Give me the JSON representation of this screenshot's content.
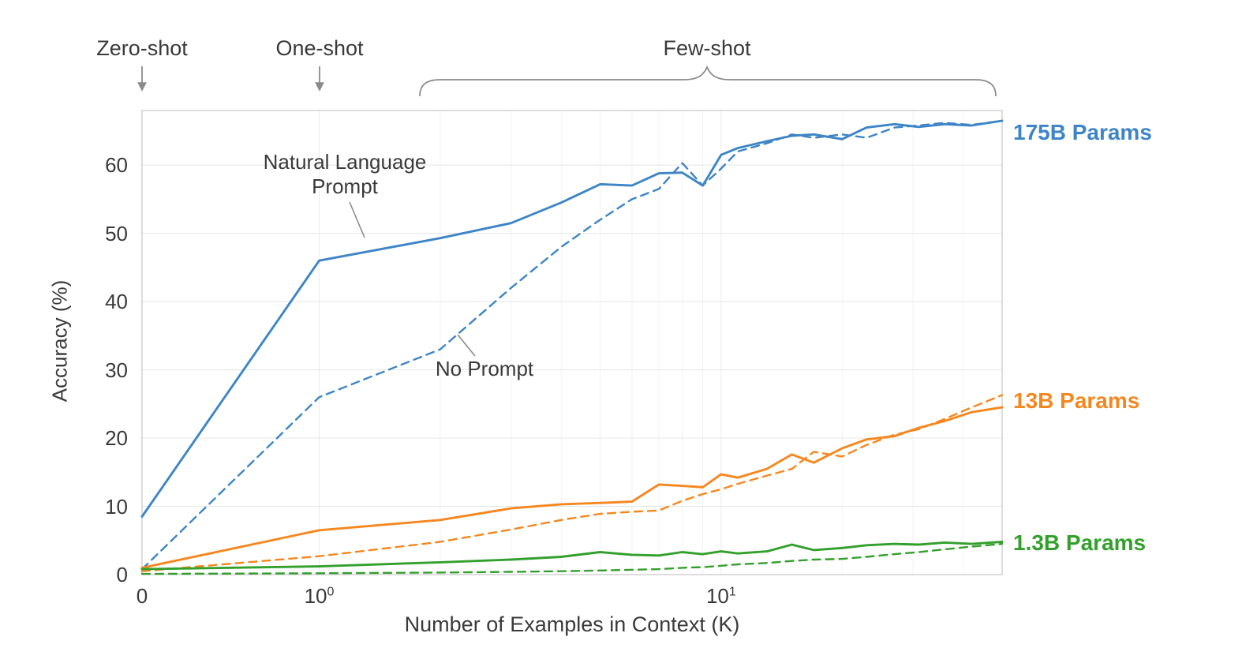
{
  "figure": {
    "regions": {
      "zero_shot": "Zero-shot",
      "one_shot": "One-shot",
      "few_shot": "Few-shot"
    },
    "annotations": {
      "nl_prompt_line1": "Natural Language",
      "nl_prompt_line2": "Prompt",
      "no_prompt": "No Prompt"
    },
    "right_labels": [
      {
        "text": "175B Params",
        "color": "#3d85c6"
      },
      {
        "text": "13B Params",
        "color": "#f5871f"
      },
      {
        "text": "1.3B Params",
        "color": "#33a02c"
      }
    ]
  },
  "chart_data": {
    "type": "line",
    "title": "",
    "xlabel": "Number of Examples in Context (K)",
    "ylabel": "Accuracy (%)",
    "x_scale": "symlog",
    "xlim": [
      0,
      50
    ],
    "ylim": [
      0,
      68
    ],
    "grid": "on",
    "x_ticks": [
      {
        "value": 0,
        "label": "0"
      },
      {
        "value": 1,
        "label": "10",
        "exp": "0"
      },
      {
        "value": 10,
        "label": "10",
        "exp": "1"
      }
    ],
    "y_ticks": [
      0,
      10,
      20,
      30,
      40,
      50,
      60
    ],
    "x": [
      0,
      1,
      2,
      3,
      4,
      5,
      6,
      7,
      8,
      9,
      10,
      11,
      13,
      15,
      17,
      20,
      23,
      27,
      31,
      36,
      42,
      50
    ],
    "series": [
      {
        "id": "175b-nl-prompt",
        "name": "175B Params — Natural Language Prompt",
        "color": "#3d85c6",
        "line_style": "solid",
        "values": [
          8.5,
          46.0,
          49.3,
          51.5,
          54.5,
          57.2,
          57.0,
          58.8,
          58.9,
          57.0,
          61.5,
          62.5,
          63.5,
          64.3,
          64.5,
          63.8,
          65.5,
          66.0,
          65.6,
          66.0,
          65.8,
          66.5
        ]
      },
      {
        "id": "175b-no-prompt",
        "name": "175B Params — No Prompt",
        "color": "#3d85c6",
        "line_style": "dashed",
        "values": [
          0.8,
          26.0,
          33.0,
          42.0,
          48.0,
          52.0,
          55.0,
          56.5,
          60.3,
          57.0,
          59.5,
          62.0,
          63.2,
          64.5,
          64.0,
          64.5,
          64.0,
          65.5,
          65.8,
          66.2,
          65.9,
          66.5
        ]
      },
      {
        "id": "13b-nl-prompt",
        "name": "13B Params — Natural Language Prompt",
        "color": "#f5871f",
        "line_style": "solid",
        "values": [
          1.0,
          6.5,
          8.0,
          9.7,
          10.3,
          10.5,
          10.7,
          13.2,
          13.0,
          12.8,
          14.7,
          14.2,
          15.5,
          17.6,
          16.4,
          18.5,
          19.8,
          20.3,
          21.5,
          22.5,
          23.8,
          24.5
        ]
      },
      {
        "id": "13b-no-prompt",
        "name": "13B Params — No Prompt",
        "color": "#f5871f",
        "line_style": "dashed",
        "values": [
          0.5,
          2.7,
          4.8,
          6.6,
          8.0,
          8.9,
          9.2,
          9.4,
          10.8,
          11.8,
          12.5,
          13.3,
          14.5,
          15.5,
          18.0,
          17.3,
          19.0,
          20.5,
          21.3,
          22.8,
          24.5,
          26.3
        ]
      },
      {
        "id": "1-3b-nl-prompt",
        "name": "1.3B Params — Natural Language Prompt",
        "color": "#33a02c",
        "line_style": "solid",
        "values": [
          0.8,
          1.2,
          1.8,
          2.2,
          2.6,
          3.3,
          2.9,
          2.8,
          3.3,
          3.0,
          3.4,
          3.1,
          3.4,
          4.4,
          3.6,
          3.9,
          4.3,
          4.5,
          4.4,
          4.7,
          4.5,
          4.8
        ]
      },
      {
        "id": "1-3b-no-prompt",
        "name": "1.3B Params — No Prompt",
        "color": "#33a02c",
        "line_style": "dashed",
        "values": [
          0.1,
          0.2,
          0.3,
          0.4,
          0.5,
          0.6,
          0.7,
          0.8,
          1.0,
          1.1,
          1.3,
          1.5,
          1.7,
          2.0,
          2.2,
          2.3,
          2.6,
          3.0,
          3.3,
          3.7,
          4.1,
          4.5
        ]
      }
    ],
    "legend_position": "right-margin",
    "annotation_colors": {
      "guides": "#8a8a8a"
    }
  }
}
